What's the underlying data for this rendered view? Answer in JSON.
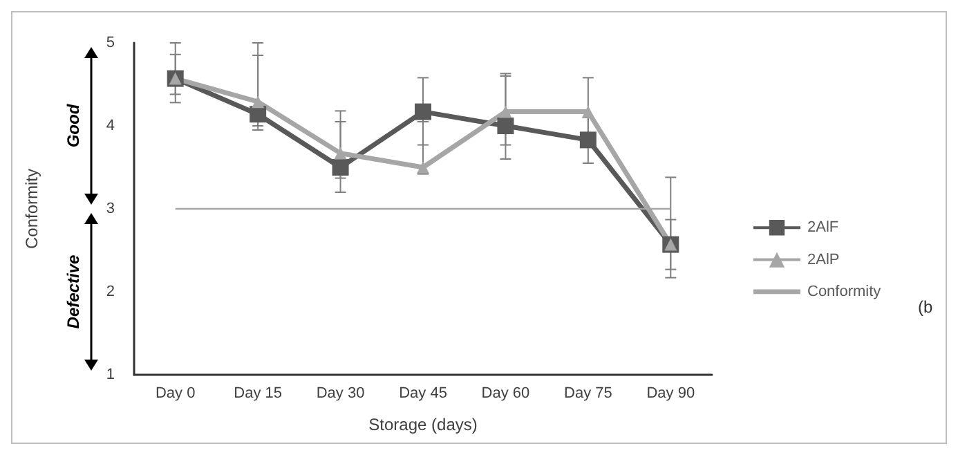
{
  "chart_data": {
    "type": "line",
    "xlabel": "Storage (days)",
    "ylabel": "Conformity",
    "categories": [
      "Day 0",
      "Day 15",
      "Day 30",
      "Day 45",
      "Day 60",
      "Day 75",
      "Day 90"
    ],
    "series": [
      {
        "name": "2AlF",
        "color": "#595959",
        "marker": "square",
        "values": [
          4.57,
          4.14,
          3.5,
          4.17,
          4.0,
          3.83,
          2.57
        ],
        "errors": [
          [
            4.28,
            4.86
          ],
          [
            3.95,
            4.85
          ],
          [
            3.2,
            4.05
          ],
          [
            3.77,
            4.58
          ],
          [
            3.6,
            4.6
          ],
          [
            3.55,
            4.1
          ],
          [
            2.17,
            3.38
          ]
        ]
      },
      {
        "name": "2AlP",
        "color": "#a6a6a6",
        "marker": "triangle",
        "values": [
          4.57,
          4.29,
          3.67,
          3.5,
          4.17,
          4.17,
          2.57
        ],
        "errors": [
          [
            4.38,
            5.0
          ],
          [
            4.0,
            5.0
          ],
          [
            3.37,
            4.18
          ],
          [
            3.42,
            4.05
          ],
          [
            3.77,
            4.63
          ],
          [
            3.75,
            4.58
          ],
          [
            2.27,
            2.87
          ]
        ]
      },
      {
        "name": "Conformity",
        "color": "#a6a6a6",
        "marker": "none",
        "values": [
          3,
          3,
          3,
          3,
          3,
          3,
          3
        ]
      }
    ],
    "ylim": [
      1,
      5
    ],
    "yticks": [
      1,
      2,
      3,
      4,
      5
    ],
    "grid": false,
    "legend": "right",
    "annotations": [
      "Good",
      "Defective",
      "(b"
    ]
  }
}
